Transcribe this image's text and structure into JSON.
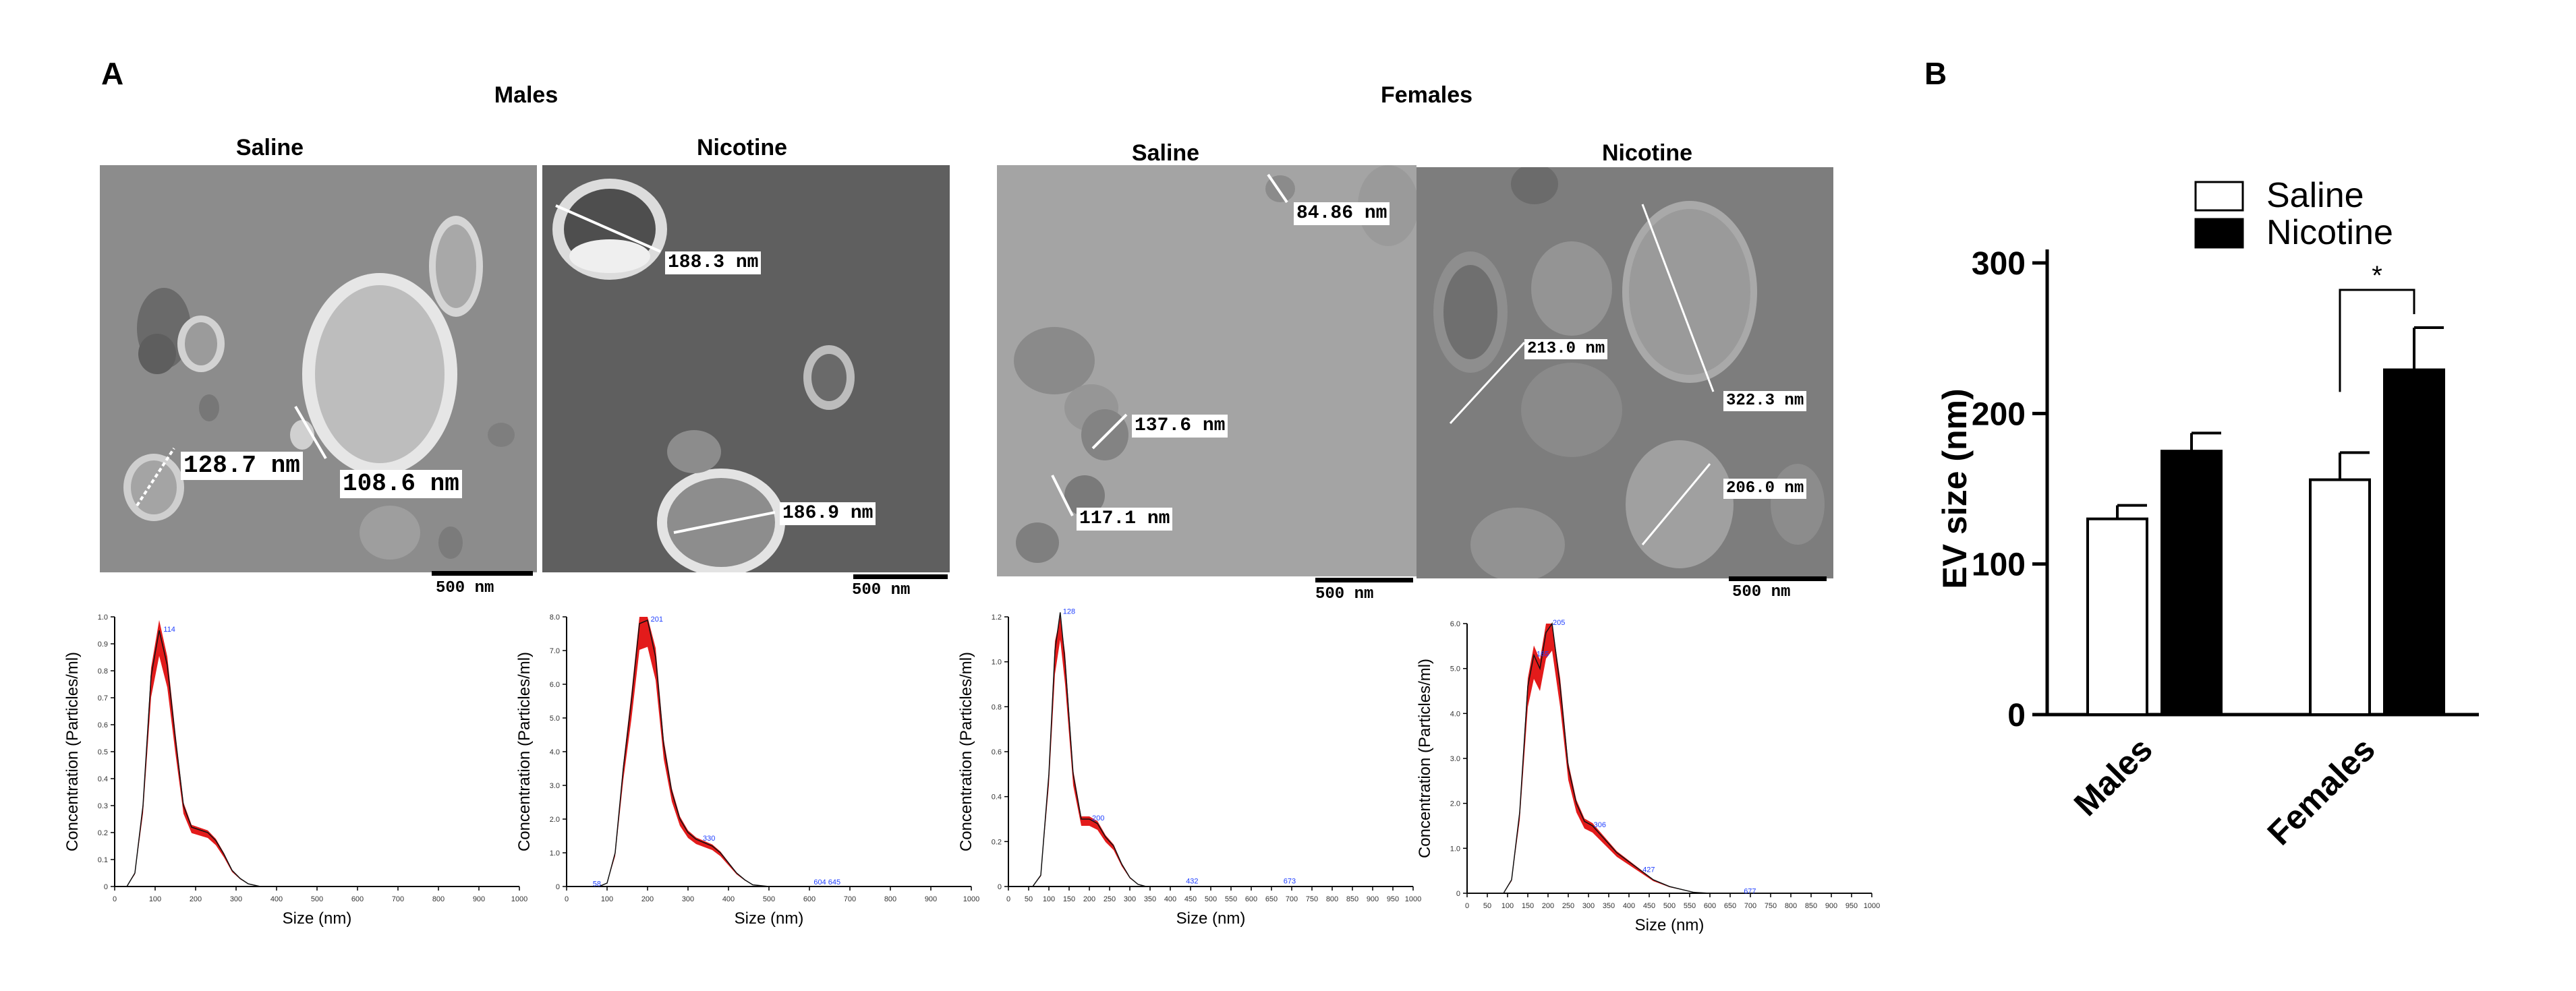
{
  "panel_a_label": "A",
  "panel_b_label": "B",
  "groups": [
    {
      "title": "Males"
    },
    {
      "title": "Females"
    }
  ],
  "em_panels": [
    {
      "condition": "Saline",
      "scale": "500 nm",
      "measurements": [
        "128.7 nm",
        "108.6 nm"
      ]
    },
    {
      "condition": "Nicotine",
      "scale": "500 nm",
      "measurements": [
        "188.3 nm",
        "186.9 nm"
      ]
    },
    {
      "condition": "Saline",
      "scale": "500 nm",
      "measurements": [
        "84.86 nm",
        "137.6 nm",
        "117.1 nm"
      ]
    },
    {
      "condition": "Nicotine",
      "scale": "500 nm",
      "measurements": [
        "213.0 nm",
        "322.3 nm",
        "206.0 nm"
      ]
    }
  ],
  "chart_data": [
    {
      "type": "line",
      "xlabel": "Size (nm)",
      "ylabel": "Concentration (Particles/ml)",
      "xlim": [
        0,
        1000
      ],
      "ylim": [
        0,
        1.0
      ],
      "x_ticks": [
        "0",
        "100",
        "200",
        "300",
        "400",
        "500",
        "600",
        "700",
        "800",
        "900",
        "1000"
      ],
      "y_ticks": [
        "0",
        "0.1",
        "0.2",
        "0.3",
        "0.4",
        "0.5",
        "0.6",
        "0.7",
        "0.8",
        "0.9",
        "1.0"
      ],
      "series": [
        {
          "x": [
            0,
            30,
            50,
            70,
            90,
            110,
            130,
            150,
            170,
            190,
            210,
            230,
            250,
            270,
            290,
            310,
            330,
            360,
            400,
            500,
            1000
          ],
          "values": [
            0,
            0,
            0.05,
            0.3,
            0.78,
            0.95,
            0.82,
            0.55,
            0.3,
            0.22,
            0.21,
            0.2,
            0.17,
            0.12,
            0.06,
            0.03,
            0.01,
            0,
            0,
            0,
            0
          ]
        }
      ],
      "annotations": [
        {
          "x": 114,
          "y": 0.95,
          "text": "114"
        }
      ]
    },
    {
      "type": "line",
      "xlabel": "Size (nm)",
      "ylabel": "Concentration (Particles/ml)",
      "xlim": [
        0,
        1000
      ],
      "ylim": [
        0,
        8
      ],
      "x_ticks": [
        "0",
        "100",
        "200",
        "300",
        "400",
        "500",
        "600",
        "700",
        "800",
        "900",
        "1000"
      ],
      "y_ticks": [
        "0",
        "1.0",
        "2.0",
        "3.0",
        "4.0",
        "5.0",
        "6.0",
        "7.0",
        "8.0"
      ],
      "series": [
        {
          "x": [
            0,
            80,
            100,
            120,
            140,
            160,
            180,
            200,
            220,
            240,
            260,
            280,
            300,
            320,
            340,
            360,
            380,
            400,
            420,
            440,
            460,
            500,
            600,
            1000
          ],
          "values": [
            0,
            0,
            0.1,
            1.0,
            3.5,
            5.5,
            7.8,
            7.9,
            6.8,
            4.2,
            2.8,
            2.0,
            1.6,
            1.4,
            1.3,
            1.2,
            1.0,
            0.7,
            0.4,
            0.2,
            0.05,
            0,
            0,
            0
          ]
        }
      ],
      "annotations": [
        {
          "x": 58,
          "y": 0.05,
          "text": "58"
        },
        {
          "x": 201,
          "y": 7.9,
          "text": "201"
        },
        {
          "x": 330,
          "y": 1.4,
          "text": "330"
        },
        {
          "x": 604,
          "y": 0.1,
          "text": "604 645"
        }
      ]
    },
    {
      "type": "line",
      "xlabel": "Size (nm)",
      "ylabel": "Concentration (Particles/ml)",
      "xlim": [
        0,
        1000
      ],
      "ylim": [
        0,
        1.2
      ],
      "x_ticks": [
        "0",
        "50",
        "100",
        "150",
        "200",
        "250",
        "300",
        "350",
        "400",
        "450",
        "500",
        "550",
        "600",
        "650",
        "700",
        "750",
        "800",
        "850",
        "900",
        "950",
        "1000"
      ],
      "y_ticks": [
        "0",
        "0.2",
        "0.4",
        "0.6",
        "0.8",
        "1.0",
        "1.2"
      ],
      "series": [
        {
          "x": [
            0,
            60,
            80,
            100,
            115,
            128,
            140,
            160,
            180,
            200,
            220,
            240,
            260,
            280,
            300,
            320,
            340,
            400,
            1000
          ],
          "values": [
            0,
            0,
            0.05,
            0.5,
            1.05,
            1.22,
            1.0,
            0.5,
            0.3,
            0.3,
            0.28,
            0.22,
            0.18,
            0.1,
            0.04,
            0.01,
            0,
            0,
            0
          ]
        }
      ],
      "annotations": [
        {
          "x": 128,
          "y": 1.22,
          "text": "128"
        },
        {
          "x": 200,
          "y": 0.3,
          "text": "200"
        },
        {
          "x": 432,
          "y": 0.02,
          "text": "432"
        },
        {
          "x": 673,
          "y": 0.02,
          "text": "673"
        }
      ]
    },
    {
      "type": "line",
      "xlabel": "Size (nm)",
      "ylabel": "Concentration (Particles/ml)",
      "xlim": [
        0,
        1000
      ],
      "ylim": [
        0,
        6.0
      ],
      "x_ticks": [
        "0",
        "50",
        "100",
        "150",
        "200",
        "250",
        "300",
        "350",
        "400",
        "450",
        "500",
        "550",
        "600",
        "650",
        "700",
        "750",
        "800",
        "850",
        "900",
        "950",
        "1000"
      ],
      "y_ticks": [
        "0",
        "1.0",
        "2.0",
        "3.0",
        "4.0",
        "5.0",
        "6.0"
      ],
      "series": [
        {
          "x": [
            0,
            90,
            110,
            130,
            150,
            165,
            180,
            195,
            210,
            230,
            250,
            270,
            290,
            310,
            330,
            350,
            370,
            400,
            430,
            460,
            500,
            560,
            600,
            1000
          ],
          "values": [
            0,
            0,
            0.3,
            1.8,
            4.6,
            5.3,
            5.0,
            5.8,
            6.0,
            4.6,
            2.8,
            2.0,
            1.6,
            1.5,
            1.3,
            1.1,
            0.9,
            0.7,
            0.5,
            0.3,
            0.15,
            0.02,
            0,
            0
          ]
        }
      ],
      "annotations": [
        {
          "x": 165,
          "y": 5.3,
          "text": "165"
        },
        {
          "x": 205,
          "y": 6.0,
          "text": "205"
        },
        {
          "x": 306,
          "y": 1.5,
          "text": "306"
        },
        {
          "x": 427,
          "y": 0.5,
          "text": "427"
        },
        {
          "x": 677,
          "y": 0.02,
          "text": "677"
        }
      ]
    },
    {
      "type": "bar",
      "categories": [
        "Males",
        "Females"
      ],
      "series": [
        {
          "name": "Saline",
          "values": [
            130,
            156
          ],
          "errors": [
            9,
            18
          ],
          "color": "#ffffff"
        },
        {
          "name": "Nicotine",
          "values": [
            175,
            229
          ],
          "errors": [
            12,
            28
          ],
          "color": "#000000"
        }
      ],
      "ylabel": "EV size (nm)",
      "ylim": [
        0,
        300
      ],
      "y_ticks": [
        "0",
        "100",
        "200",
        "300"
      ],
      "legend": "top",
      "significance": {
        "category": "Females",
        "text": "*"
      }
    }
  ]
}
